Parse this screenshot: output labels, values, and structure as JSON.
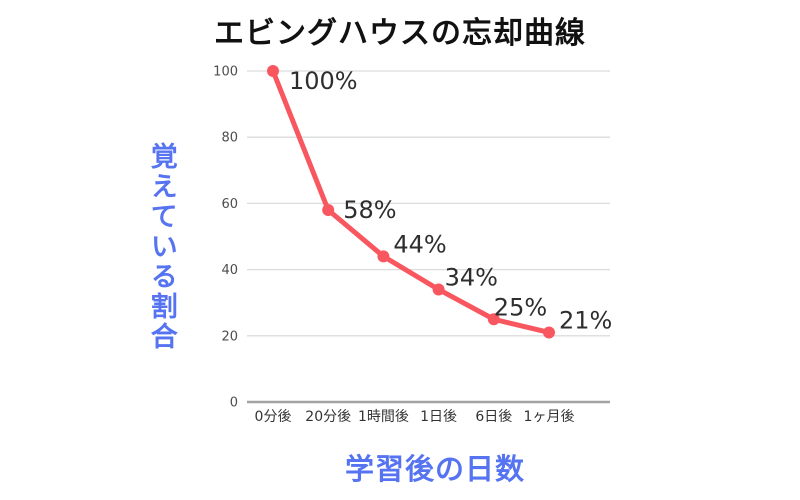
{
  "chart_data": {
    "type": "line",
    "title": "エビングハウスの忘却曲線",
    "xlabel": "学習後の日数",
    "ylabel": "覚えている割合",
    "categories": [
      "0分後",
      "20分後",
      "1時間後",
      "1日後",
      "6日後",
      "1ヶ月後"
    ],
    "values": [
      100,
      58,
      44,
      34,
      25,
      21
    ],
    "data_labels": [
      "100%",
      "58%",
      "44%",
      "34%",
      "25%",
      "21%"
    ],
    "yticks": [
      0,
      20,
      40,
      60,
      80,
      100
    ],
    "ylim": [
      0,
      100
    ],
    "grid": "horizontal-only",
    "legend": "none",
    "colors": {
      "line": "#f9575f",
      "point": "#f9575f",
      "axis_title": "#5674f2",
      "chart_title": "#111111",
      "data_label": "#2e2e2e",
      "tick_label": "#4d4d4d",
      "category_label": "#333333",
      "gridline": "#dcdcdc",
      "axis_line": "#a3a3a3",
      "background": "#ffffff"
    }
  }
}
